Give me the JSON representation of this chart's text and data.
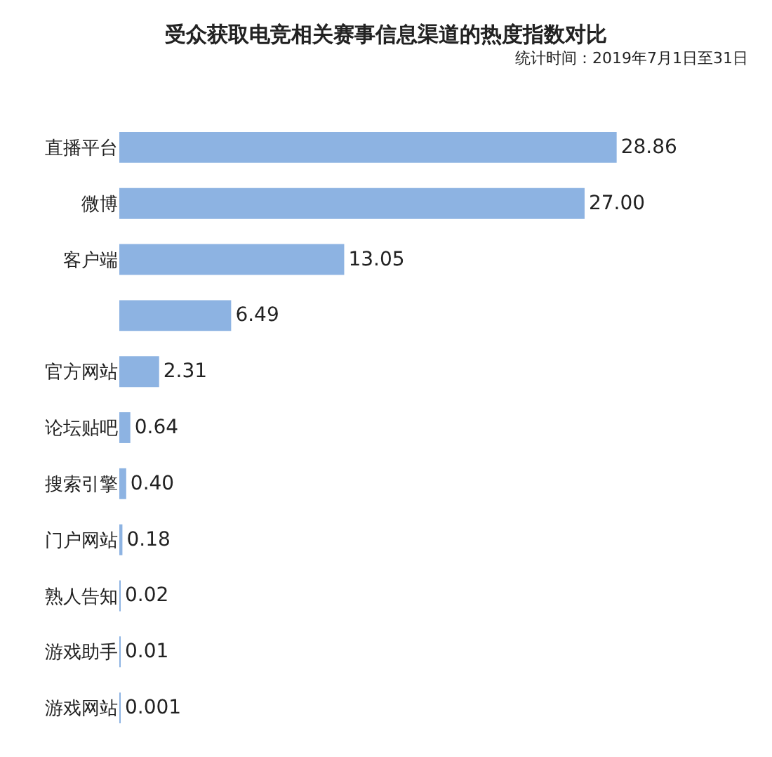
{
  "chart_data": {
    "type": "bar",
    "orientation": "horizontal",
    "title": "受众获取电竞相关赛事信息渠道的热度指数对比",
    "subtitle": "统计时间：2019年7月1日至31日",
    "categories": [
      "直播平台",
      "微博",
      "客户端",
      null,
      "官方网站",
      "论坛贴吧",
      "搜索引擎",
      "门户网站",
      "熟人告知",
      "游戏助手",
      "游戏网站"
    ],
    "values": [
      28.86,
      27.0,
      13.05,
      6.49,
      2.31,
      0.64,
      0.4,
      0.18,
      0.02,
      0.01,
      0.001
    ],
    "value_labels": [
      "28.86",
      "27.00",
      "13.05",
      "6.49",
      "2.31",
      "0.64",
      "0.40",
      "0.18",
      "0.02",
      "0.01",
      "0.001"
    ],
    "color": "#8db3e2"
  }
}
